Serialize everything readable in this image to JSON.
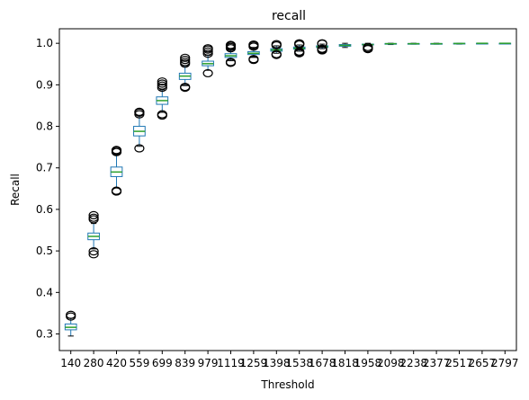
{
  "chart_data": {
    "type": "box",
    "title": "recall",
    "xlabel": "Threshold",
    "ylabel": "Recall",
    "ylim": [
      0.26,
      1.035
    ],
    "yticks": [
      0.3,
      0.4,
      0.5,
      0.6,
      0.7,
      0.8,
      0.9,
      1.0
    ],
    "ytick_labels": [
      "0.3",
      "0.4",
      "0.5",
      "0.6",
      "0.7",
      "0.8",
      "0.9",
      "1.0"
    ],
    "grid": false,
    "colors": {
      "box": "#1f77b4",
      "median": "#2ca02c",
      "flier": "#000000"
    },
    "categories": [
      "140",
      "280",
      "420",
      "559",
      "699",
      "839",
      "979",
      "1119",
      "1259",
      "1398",
      "1538",
      "1678",
      "1818",
      "1958",
      "2098",
      "2238",
      "2377",
      "2517",
      "2657",
      "2797"
    ],
    "boxes": [
      {
        "whislo": 0.295,
        "q1": 0.31,
        "med": 0.316,
        "q3": 0.324,
        "whishi": 0.338,
        "fliers": [
          0.342,
          0.346
        ]
      },
      {
        "whislo": 0.505,
        "q1": 0.527,
        "med": 0.535,
        "q3": 0.543,
        "whishi": 0.566,
        "fliers": [
          0.492,
          0.499,
          0.576,
          0.58,
          0.586
        ]
      },
      {
        "whislo": 0.652,
        "q1": 0.679,
        "med": 0.69,
        "q3": 0.702,
        "whishi": 0.732,
        "fliers": [
          0.643,
          0.645,
          0.738,
          0.741,
          0.743
        ]
      },
      {
        "whislo": 0.752,
        "q1": 0.777,
        "med": 0.788,
        "q3": 0.8,
        "whishi": 0.826,
        "fliers": [
          0.747,
          0.829,
          0.833,
          0.835
        ]
      },
      {
        "whislo": 0.834,
        "q1": 0.853,
        "med": 0.862,
        "q3": 0.871,
        "whishi": 0.888,
        "fliers": [
          0.826,
          0.829,
          0.893,
          0.898,
          0.903,
          0.908
        ]
      },
      {
        "whislo": 0.898,
        "q1": 0.913,
        "med": 0.921,
        "q3": 0.928,
        "whishi": 0.946,
        "fliers": [
          0.893,
          0.895,
          0.951,
          0.955,
          0.96,
          0.965
        ]
      },
      {
        "whislo": 0.935,
        "q1": 0.946,
        "med": 0.951,
        "q3": 0.957,
        "whishi": 0.971,
        "fliers": [
          0.928,
          0.975,
          0.98,
          0.985,
          0.988
        ]
      },
      {
        "whislo": 0.958,
        "q1": 0.966,
        "med": 0.97,
        "q3": 0.975,
        "whishi": 0.986,
        "fliers": [
          0.953,
          0.955,
          0.988,
          0.991,
          0.994,
          0.996
        ]
      },
      {
        "whislo": 0.966,
        "q1": 0.973,
        "med": 0.976,
        "q3": 0.98,
        "whishi": 0.99,
        "fliers": [
          0.96,
          0.962,
          0.992,
          0.995,
          0.997
        ]
      },
      {
        "whislo": 0.976,
        "q1": 0.981,
        "med": 0.984,
        "q3": 0.987,
        "whishi": 0.994,
        "fliers": [
          0.972,
          0.974,
          0.995,
          0.998
        ]
      },
      {
        "whislo": 0.981,
        "q1": 0.986,
        "med": 0.988,
        "q3": 0.991,
        "whishi": 0.996,
        "fliers": [
          0.976,
          0.978,
          0.98,
          0.997,
          0.999,
          1.0
        ]
      },
      {
        "whislo": 0.987,
        "q1": 0.99,
        "med": 0.992,
        "q3": 0.994,
        "whishi": 0.998,
        "fliers": [
          0.983,
          0.985,
          0.987,
          0.999,
          1.0
        ]
      },
      {
        "whislo": 0.99,
        "q1": 0.993,
        "med": 0.995,
        "q3": 0.997,
        "whishi": 1.0,
        "fliers": []
      },
      {
        "whislo": 0.995,
        "q1": 0.996,
        "med": 0.997,
        "q3": 0.998,
        "whishi": 1.0,
        "fliers": [
          0.986,
          0.988,
          0.991
        ]
      },
      {
        "whislo": 0.997,
        "q1": 0.998,
        "med": 0.999,
        "q3": 0.9995,
        "whishi": 1.0,
        "fliers": []
      },
      {
        "whislo": 0.998,
        "q1": 0.9985,
        "med": 0.999,
        "q3": 0.9995,
        "whishi": 1.0,
        "fliers": []
      },
      {
        "whislo": 0.998,
        "q1": 0.9985,
        "med": 0.999,
        "q3": 0.9995,
        "whishi": 1.0,
        "fliers": []
      },
      {
        "whislo": 0.998,
        "q1": 0.999,
        "med": 0.9995,
        "q3": 1.0,
        "whishi": 1.0,
        "fliers": []
      },
      {
        "whislo": 0.999,
        "q1": 0.9995,
        "med": 1.0,
        "q3": 1.0,
        "whishi": 1.0,
        "fliers": []
      },
      {
        "whislo": 1.0,
        "q1": 1.0,
        "med": 1.0,
        "q3": 1.0,
        "whishi": 1.0,
        "fliers": []
      }
    ]
  }
}
